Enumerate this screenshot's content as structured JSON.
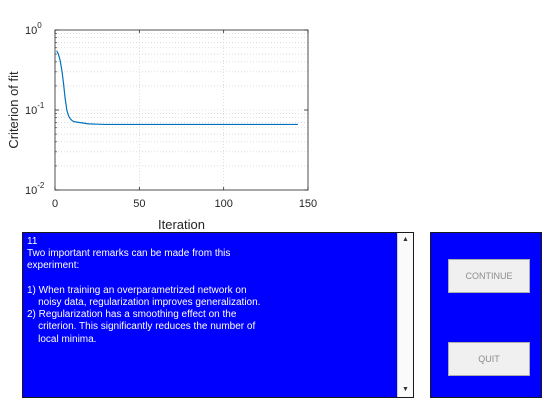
{
  "chart_data": {
    "type": "line",
    "xlabel": "Iteration",
    "ylabel": "Criterion of fit",
    "xlim": [
      0,
      150
    ],
    "ylim": [
      0.01,
      1
    ],
    "yscale": "log",
    "grid": "on (major and minor on y)",
    "xticks": [
      0,
      50,
      100,
      150
    ],
    "xtick_labels": [
      "0",
      "50",
      "100",
      "150"
    ],
    "ytick_labels": [
      {
        "base": "10",
        "exp": "-2",
        "value": 0.01
      },
      {
        "base": "10",
        "exp": "-1",
        "value": 0.1
      },
      {
        "base": "10",
        "exp": "0",
        "value": 1
      }
    ],
    "line_color": "#0072bd",
    "x": [
      1,
      2,
      3,
      4,
      5,
      6,
      7,
      8,
      9,
      10,
      11,
      12,
      14,
      16,
      18,
      20,
      25,
      30,
      40,
      60,
      80,
      100,
      120,
      144
    ],
    "y": [
      0.55,
      0.5,
      0.42,
      0.32,
      0.22,
      0.14,
      0.1,
      0.085,
      0.078,
      0.074,
      0.072,
      0.071,
      0.07,
      0.069,
      0.068,
      0.067,
      0.0665,
      0.066,
      0.066,
      0.066,
      0.066,
      0.066,
      0.066,
      0.066
    ]
  },
  "text_panel": {
    "text": "11\nTwo important remarks can be made from this\nexperiment:\n\n1) When training an overparametrized network on\n    noisy data, regularization improves generalization.\n2) Regularization has a smoothing effect on the\n    criterion. This significantly reduces the number of\n    local minima.",
    "bg_color": "#0000ff",
    "scroll_up_icon": "triangle-up",
    "scroll_down_icon": "triangle-down"
  },
  "buttons": {
    "continue_label": "CONTINUE",
    "quit_label": "QUIT"
  }
}
